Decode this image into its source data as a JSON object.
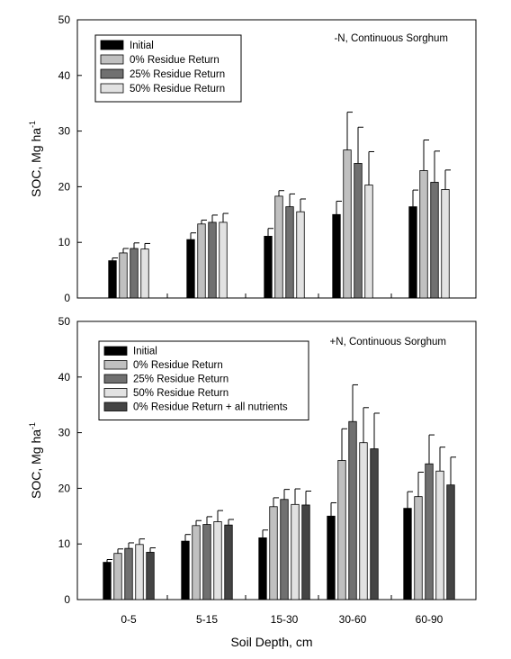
{
  "chart_data": [
    {
      "type": "bar",
      "title": "-N, Continuous Sorghum",
      "xlabel": "Soil Depth, cm",
      "ylabel": "SOC, Mg ha",
      "ylabel_sup": "-1",
      "ylim": [
        0,
        50
      ],
      "yticks": [
        0,
        10,
        20,
        30,
        40,
        50
      ],
      "categories": [
        "0-5",
        "5-15",
        "15-30",
        "30-60",
        "60-90"
      ],
      "legend_position": "top-left",
      "error_bars": "positive only",
      "series": [
        {
          "name": "Initial",
          "color": "#000000",
          "values": [
            6.7,
            10.5,
            11.1,
            15.0,
            16.4
          ],
          "errors": [
            0.5,
            1.2,
            1.4,
            2.4,
            3.0
          ]
        },
        {
          "name": "0% Residue Return",
          "color": "#c0c0c0",
          "values": [
            8.1,
            13.3,
            18.3,
            26.6,
            22.9
          ],
          "errors": [
            0.8,
            0.7,
            1.0,
            6.8,
            5.5
          ]
        },
        {
          "name": "25% Residue Return",
          "color": "#707070",
          "values": [
            8.9,
            13.6,
            16.4,
            24.2,
            20.8
          ],
          "errors": [
            1.0,
            1.3,
            2.3,
            6.5,
            5.6
          ]
        },
        {
          "name": "50% Residue Return",
          "color": "#e2e2e2",
          "values": [
            8.8,
            13.6,
            15.5,
            20.3,
            19.5
          ],
          "errors": [
            1.0,
            1.6,
            2.3,
            6.0,
            3.5
          ]
        }
      ]
    },
    {
      "type": "bar",
      "title": "+N, Continuous Sorghum",
      "xlabel": "Soil Depth, cm",
      "ylabel": "SOC, Mg ha",
      "ylabel_sup": "-1",
      "ylim": [
        0,
        50
      ],
      "yticks": [
        0,
        10,
        20,
        30,
        40,
        50
      ],
      "categories": [
        "0-5",
        "5-15",
        "15-30",
        "30-60",
        "60-90"
      ],
      "legend_position": "top-left",
      "error_bars": "positive only",
      "series": [
        {
          "name": "Initial",
          "color": "#000000",
          "values": [
            6.7,
            10.5,
            11.1,
            15.0,
            16.4
          ],
          "errors": [
            0.5,
            1.2,
            1.4,
            2.4,
            3.0
          ]
        },
        {
          "name": "0% Residue Return",
          "color": "#c0c0c0",
          "values": [
            8.3,
            13.3,
            16.7,
            25.0,
            18.5
          ],
          "errors": [
            0.8,
            0.9,
            1.6,
            5.7,
            4.4
          ]
        },
        {
          "name": "25% Residue Return",
          "color": "#707070",
          "values": [
            9.2,
            13.5,
            18.0,
            32.0,
            24.4
          ],
          "errors": [
            1.0,
            1.4,
            1.8,
            6.6,
            5.2
          ]
        },
        {
          "name": "50% Residue Return",
          "color": "#e2e2e2",
          "values": [
            9.9,
            14.0,
            17.1,
            28.2,
            23.1
          ],
          "errors": [
            1.0,
            2.0,
            2.8,
            6.3,
            4.3
          ]
        },
        {
          "name": "0% Residue Return + all nutrients",
          "color": "#444444",
          "values": [
            8.5,
            13.4,
            17.0,
            27.1,
            20.6
          ],
          "errors": [
            0.8,
            1.0,
            2.5,
            6.4,
            5.0
          ]
        }
      ]
    }
  ]
}
